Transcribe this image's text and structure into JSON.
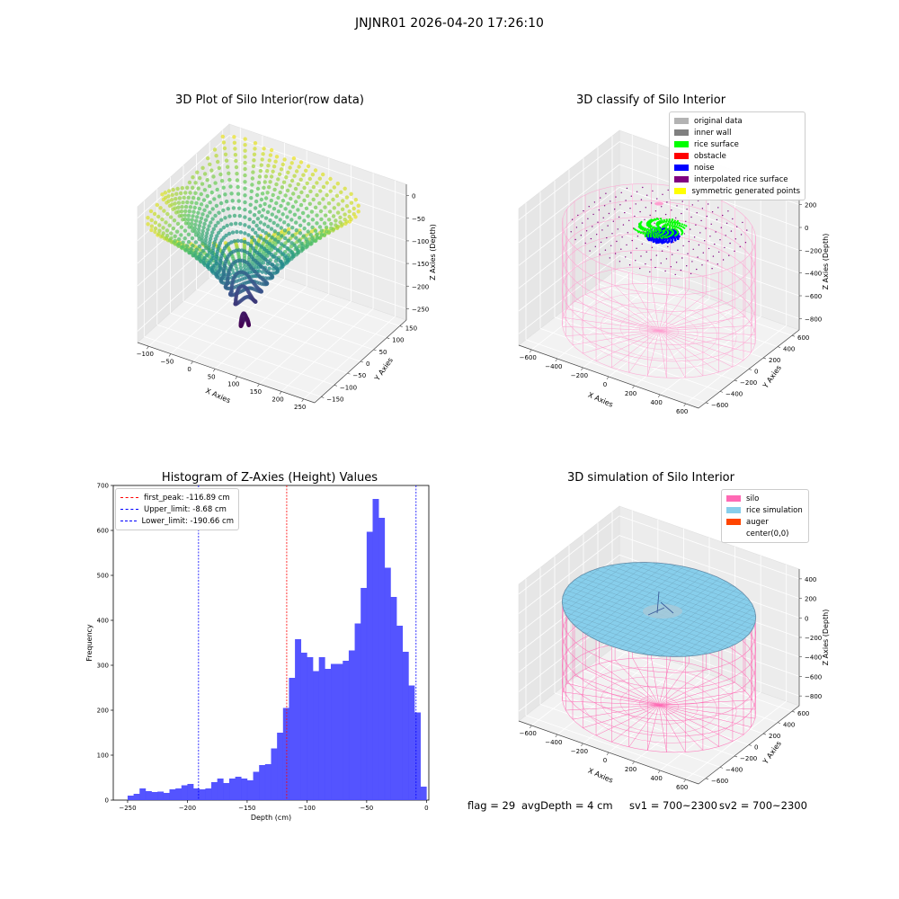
{
  "figure": {
    "suptitle": "JNJNR01 2026-04-20 17:26:10",
    "footer": {
      "flag": "flag = 29",
      "avg_depth": "avgDepth = 4 cm",
      "sv1": "sv1 = 700~2300",
      "sv2": "sv2 = 700~2300"
    }
  },
  "chart_data": [
    {
      "type": "scatter",
      "projection": "3d",
      "title": "3D Plot of Silo Interior(row data)",
      "xlabel": "X Axies",
      "ylabel": "Y Axies",
      "zlabel": "Z Axies (Depth)",
      "xticks": [
        "−100",
        "−50",
        "0",
        "50",
        "100",
        "150",
        "200",
        "250"
      ],
      "yticks": [
        "−150",
        "−100",
        "−50",
        "0",
        "50",
        "100",
        "150"
      ],
      "zticks": [
        "0",
        "−50",
        "−100",
        "−150",
        "−200",
        "−250"
      ],
      "xlim": [
        -125,
        275
      ],
      "ylim": [
        -160,
        160
      ],
      "zlim": [
        -265,
        5
      ],
      "colormap": "viridis",
      "grid": true
    },
    {
      "type": "scatter",
      "projection": "3d",
      "title": "3D classify of Silo Interior",
      "xlabel": "X Axies",
      "ylabel": "Y Axies",
      "zlabel": "Z Axies (Depth)",
      "xticks": [
        "−600",
        "−400",
        "−200",
        "0",
        "200",
        "400",
        "600"
      ],
      "yticks": [
        "−600",
        "−400",
        "−200",
        "0",
        "200",
        "400",
        "600"
      ],
      "zticks": [
        "200",
        "0",
        "−200",
        "−400",
        "−600",
        "−800"
      ],
      "legend_position": "upper-right",
      "legend": [
        {
          "label": "original data",
          "color": "#b3b3b3"
        },
        {
          "label": "inner wall",
          "color": "#808080"
        },
        {
          "label": "rice surface",
          "color": "#00ff00"
        },
        {
          "label": "obstacle",
          "color": "#ff0000"
        },
        {
          "label": "noise",
          "color": "#0000ff"
        },
        {
          "label": "interpolated rice surface",
          "color": "#800080"
        },
        {
          "label": "symmetric generated points",
          "color": "#ffff00"
        }
      ],
      "grid": true
    },
    {
      "type": "bar",
      "subtype": "histogram",
      "title": "Histogram of Z-Axies (Height) Values",
      "xlabel": "Depth (cm)",
      "ylabel": "Frequency",
      "xlim": [
        -262,
        2
      ],
      "ylim": [
        0,
        700
      ],
      "xticks": [
        -250,
        -200,
        -150,
        -100,
        -50,
        0
      ],
      "yticks": [
        0,
        100,
        200,
        300,
        400,
        500,
        600,
        700
      ],
      "bin_start": -250,
      "bin_width": 5,
      "values": [
        10,
        14,
        26,
        20,
        18,
        19,
        16,
        24,
        26,
        33,
        36,
        26,
        24,
        26,
        40,
        48,
        38,
        48,
        52,
        48,
        44,
        63,
        78,
        80,
        115,
        150,
        205,
        272,
        358,
        328,
        318,
        287,
        318,
        292,
        303,
        303,
        310,
        333,
        393,
        472,
        597,
        670,
        628,
        517,
        452,
        388,
        330,
        255,
        195,
        30
      ],
      "color": "#4b4bff",
      "grid": false,
      "legend_position": "upper-left",
      "vlines": [
        {
          "label": "first_peak: -116.89 cm",
          "x": -116.89,
          "color": "#ff0000"
        },
        {
          "label": "Upper_limit: -8.68 cm",
          "x": -8.68,
          "color": "#0000ff"
        },
        {
          "label": "Lower_limit: -190.66 cm",
          "x": -190.66,
          "color": "#0000ff"
        }
      ]
    },
    {
      "type": "scatter",
      "projection": "3d",
      "title": "3D simulation of Silo Interior",
      "xlabel": "X Axies",
      "ylabel": "Y Axies",
      "zlabel": "Z Axies (Depth)",
      "xticks": [
        "−600",
        "−400",
        "−200",
        "0",
        "200",
        "400",
        "600"
      ],
      "yticks": [
        "−600",
        "−400",
        "−200",
        "0",
        "200",
        "400",
        "600"
      ],
      "zticks": [
        "400",
        "200",
        "0",
        "−200",
        "−400",
        "−600",
        "−800"
      ],
      "legend_position": "upper-right",
      "legend": [
        {
          "label": "silo",
          "color": "#ff69b4"
        },
        {
          "label": "rice simulation",
          "color": "#87ceeb"
        },
        {
          "label": "auger",
          "color": "#ff4500"
        },
        {
          "label": "center(0,0)",
          "color": ""
        }
      ],
      "grid": true
    }
  ]
}
